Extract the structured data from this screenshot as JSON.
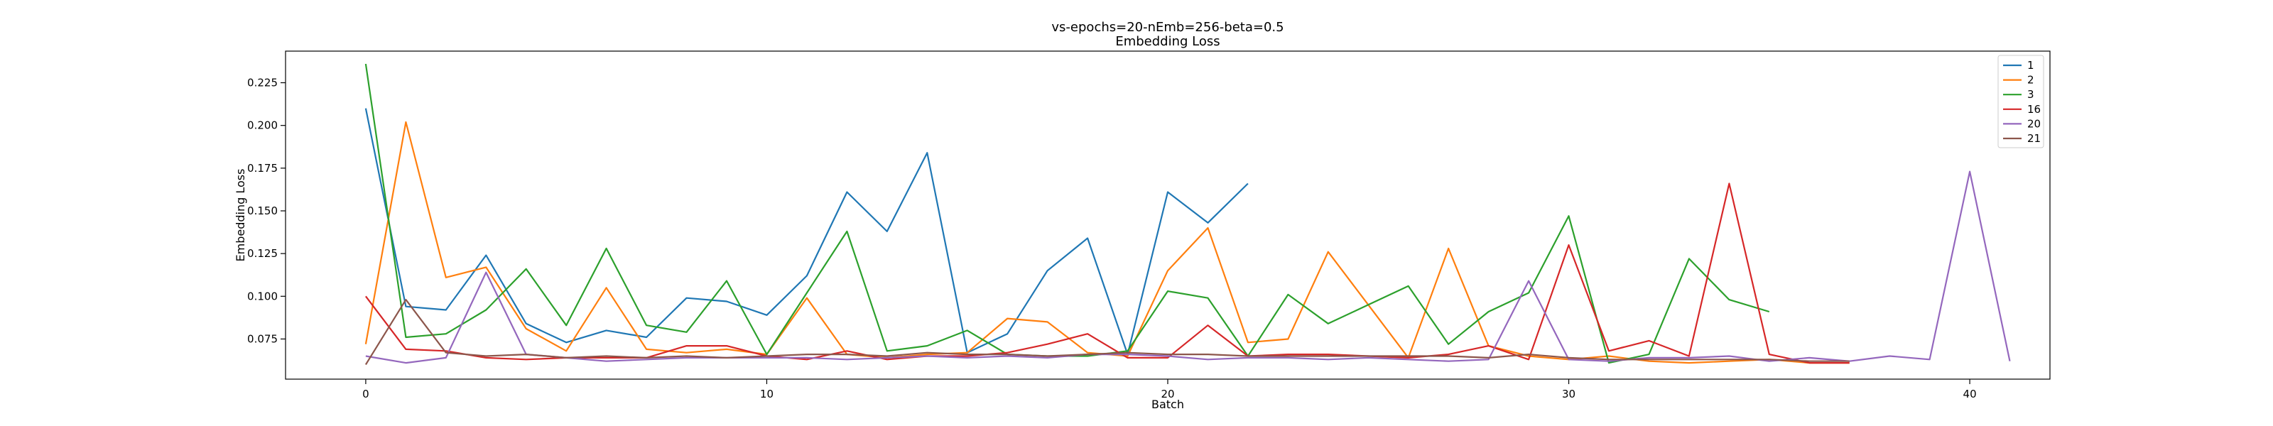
{
  "chart_data": {
    "type": "line",
    "title": "vs-epochs=20-nEmb=256-beta=0.5",
    "subtitle": "Embedding Loss",
    "xlabel": "Batch",
    "ylabel": "Embedding Loss",
    "xlim": [
      -2,
      42
    ],
    "ylim": [
      0.0515,
      0.2435
    ],
    "xticks": [
      0,
      10,
      20,
      30,
      40
    ],
    "xtick_labels": [
      "0",
      "10",
      "20",
      "30",
      "40"
    ],
    "yticks": [
      0.075,
      0.1,
      0.125,
      0.15,
      0.175,
      0.2,
      0.225
    ],
    "ytick_labels": [
      "0.075",
      "0.100",
      "0.125",
      "0.150",
      "0.175",
      "0.200",
      "0.225"
    ],
    "grid": false,
    "legend_position": "top-right",
    "series": [
      {
        "name": "1",
        "color": "#1f77b4",
        "x": [
          0,
          1,
          2,
          3,
          4,
          5,
          6,
          7,
          8,
          9,
          10,
          11,
          12,
          13,
          14,
          15,
          16,
          17,
          18,
          19,
          20,
          21,
          22
        ],
        "y": [
          0.21,
          0.094,
          0.092,
          0.124,
          0.084,
          0.073,
          0.08,
          0.076,
          0.099,
          0.097,
          0.089,
          0.112,
          0.161,
          0.138,
          0.184,
          0.067,
          0.078,
          0.115,
          0.134,
          0.066,
          0.161,
          0.143,
          0.166
        ]
      },
      {
        "name": "2",
        "color": "#ff7f0e",
        "x": [
          0,
          1,
          2,
          3,
          4,
          5,
          6,
          7,
          8,
          9,
          10,
          11,
          12,
          13,
          14,
          15,
          16,
          17,
          18,
          19,
          20,
          21,
          22,
          23,
          24,
          25,
          26,
          27,
          28,
          29,
          30,
          31,
          32,
          33,
          34,
          35,
          36,
          37
        ],
        "y": [
          0.072,
          0.202,
          0.111,
          0.117,
          0.081,
          0.068,
          0.105,
          0.069,
          0.067,
          0.069,
          0.066,
          0.099,
          0.066,
          0.064,
          0.066,
          0.067,
          0.087,
          0.085,
          0.067,
          0.065,
          0.115,
          0.14,
          0.073,
          0.075,
          0.126,
          0.095,
          0.064,
          0.128,
          0.071,
          0.065,
          0.063,
          0.065,
          0.062,
          0.061,
          0.062,
          0.063,
          0.061,
          0.061
        ]
      },
      {
        "name": "3",
        "color": "#2ca02c",
        "x": [
          0,
          1,
          2,
          3,
          4,
          5,
          6,
          7,
          8,
          9,
          10,
          11,
          12,
          13,
          14,
          15,
          16,
          17,
          18,
          19,
          20,
          21,
          22,
          23,
          24,
          25,
          26,
          27,
          28,
          29,
          30,
          31,
          32,
          33,
          34,
          35
        ],
        "y": [
          0.236,
          0.076,
          0.078,
          0.092,
          0.116,
          0.083,
          0.128,
          0.083,
          0.079,
          0.109,
          0.066,
          0.102,
          0.138,
          0.068,
          0.071,
          0.08,
          0.066,
          0.065,
          0.065,
          0.068,
          0.103,
          0.099,
          0.065,
          0.101,
          0.084,
          0.095,
          0.106,
          0.072,
          0.091,
          0.102,
          0.147,
          0.061,
          0.066,
          0.122,
          0.098,
          0.091
        ]
      },
      {
        "name": "16",
        "color": "#d62728",
        "x": [
          0,
          1,
          2,
          3,
          4,
          5,
          6,
          7,
          8,
          9,
          10,
          11,
          12,
          13,
          14,
          15,
          16,
          17,
          18,
          19,
          20,
          21,
          22,
          23,
          24,
          25,
          26,
          27,
          28,
          29,
          30,
          31,
          32,
          33,
          34,
          35,
          36,
          37
        ],
        "y": [
          0.1,
          0.069,
          0.068,
          0.064,
          0.063,
          0.064,
          0.064,
          0.064,
          0.071,
          0.071,
          0.065,
          0.063,
          0.068,
          0.063,
          0.065,
          0.065,
          0.067,
          0.072,
          0.078,
          0.064,
          0.064,
          0.083,
          0.065,
          0.066,
          0.066,
          0.065,
          0.064,
          0.066,
          0.071,
          0.063,
          0.13,
          0.068,
          0.074,
          0.065,
          0.166,
          0.066,
          0.061,
          0.061
        ]
      },
      {
        "name": "20",
        "color": "#9467bd",
        "x": [
          0,
          1,
          2,
          3,
          4,
          5,
          6,
          7,
          8,
          9,
          10,
          11,
          12,
          13,
          14,
          15,
          16,
          17,
          18,
          19,
          20,
          21,
          22,
          23,
          24,
          25,
          26,
          27,
          28,
          29,
          30,
          31,
          32,
          33,
          34,
          35,
          36,
          37,
          38,
          39,
          40,
          41
        ],
        "y": [
          0.065,
          0.061,
          0.064,
          0.114,
          0.066,
          0.064,
          0.062,
          0.063,
          0.064,
          0.064,
          0.064,
          0.064,
          0.063,
          0.064,
          0.065,
          0.064,
          0.065,
          0.064,
          0.066,
          0.066,
          0.065,
          0.063,
          0.064,
          0.064,
          0.063,
          0.064,
          0.063,
          0.062,
          0.063,
          0.109,
          0.063,
          0.062,
          0.064,
          0.064,
          0.065,
          0.062,
          0.064,
          0.062,
          0.065,
          0.063,
          0.173,
          0.062
        ]
      },
      {
        "name": "21",
        "color": "#8c564b",
        "x": [
          0,
          1,
          2,
          3,
          4,
          5,
          6,
          7,
          8,
          9,
          10,
          11,
          12,
          13,
          14,
          15,
          16,
          17,
          18,
          19,
          20,
          21,
          22,
          23,
          24,
          25,
          26,
          27,
          28,
          29,
          30,
          31,
          32,
          33,
          34,
          35,
          36,
          37
        ],
        "y": [
          0.06,
          0.098,
          0.067,
          0.065,
          0.066,
          0.064,
          0.065,
          0.064,
          0.065,
          0.064,
          0.065,
          0.066,
          0.066,
          0.065,
          0.067,
          0.066,
          0.066,
          0.065,
          0.066,
          0.067,
          0.066,
          0.066,
          0.065,
          0.065,
          0.065,
          0.065,
          0.065,
          0.065,
          0.064,
          0.066,
          0.064,
          0.063,
          0.063,
          0.063,
          0.063,
          0.063,
          0.062,
          0.062
        ]
      }
    ]
  }
}
